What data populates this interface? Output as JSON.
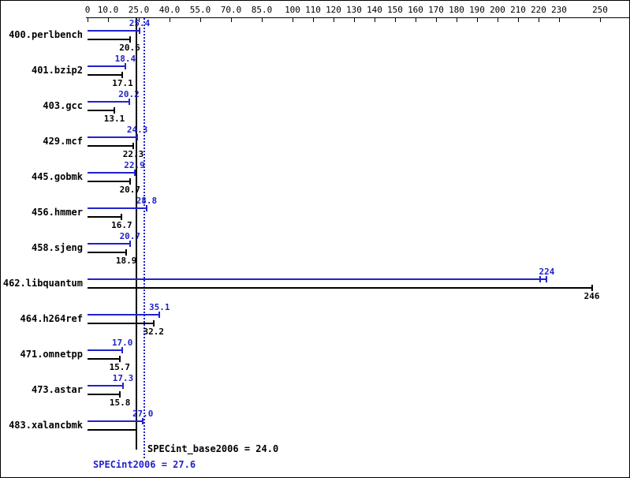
{
  "chart_data": {
    "type": "bar",
    "orientation": "horizontal",
    "legend": "none",
    "grid": false,
    "colors": {
      "peak": "#2222cc",
      "base": "#000000"
    },
    "axis": {
      "position": "top",
      "min": 0,
      "max": 250,
      "ticks": [
        "0",
        "10.0",
        "25.0",
        "40.0",
        "55.0",
        "70.0",
        "85.0",
        "100",
        "110",
        "120",
        "130",
        "140",
        "150",
        "160",
        "170",
        "180",
        "190",
        "200",
        "210",
        "220",
        "230",
        "250"
      ],
      "tick_values": [
        0,
        10,
        25,
        40,
        55,
        70,
        85,
        100,
        110,
        120,
        130,
        140,
        150,
        160,
        170,
        180,
        190,
        200,
        210,
        220,
        230,
        250
      ]
    },
    "series": [
      {
        "name": "peak",
        "label": "SPECint2006",
        "color": "#2222cc"
      },
      {
        "name": "base",
        "label": "SPECint_base2006",
        "color": "#000000"
      }
    ],
    "benchmarks": [
      {
        "name": "400.perlbench",
        "peak": 25.4,
        "peak_label": "25.4",
        "base": 20.6,
        "base_label": "20.6",
        "range_marker": false
      },
      {
        "name": "401.bzip2",
        "peak": 18.4,
        "peak_label": "18.4",
        "base": 17.1,
        "base_label": "17.1",
        "range_marker": false
      },
      {
        "name": "403.gcc",
        "peak": 20.2,
        "peak_label": "20.2",
        "base": 13.1,
        "base_label": "13.1",
        "range_marker": false
      },
      {
        "name": "429.mcf",
        "peak": 24.3,
        "peak_label": "24.3",
        "base": 22.3,
        "base_label": "22.3",
        "range_marker": false
      },
      {
        "name": "445.gobmk",
        "peak": 22.9,
        "peak_label": "22.9",
        "base": 20.7,
        "base_label": "20.7",
        "range_marker": false
      },
      {
        "name": "456.hmmer",
        "peak": 28.8,
        "peak_label": "28.8",
        "base": 16.7,
        "base_label": "16.7",
        "range_marker": false
      },
      {
        "name": "458.sjeng",
        "peak": 20.7,
        "peak_label": "20.7",
        "base": 18.9,
        "base_label": "18.9",
        "range_marker": false
      },
      {
        "name": "462.libquantum",
        "peak": 224,
        "peak_label": "224",
        "base": 246,
        "base_label": "246",
        "range_marker": true
      },
      {
        "name": "464.h264ref",
        "peak": 35.1,
        "peak_label": "35.1",
        "base": 32.2,
        "base_label": "32.2",
        "range_marker": false
      },
      {
        "name": "471.omnetpp",
        "peak": 17.0,
        "peak_label": "17.0",
        "base": 15.7,
        "base_label": "15.7",
        "range_marker": false
      },
      {
        "name": "473.astar",
        "peak": 17.3,
        "peak_label": "17.3",
        "base": 15.8,
        "base_label": "15.8",
        "range_marker": false
      },
      {
        "name": "483.xalancbmk",
        "peak": 27.0,
        "peak_label": "27.0",
        "base": 24.0,
        "base_label": "",
        "range_marker": false
      }
    ],
    "means": [
      {
        "name": "base",
        "value": 24.0,
        "label": "SPECint_base2006 = 24.0",
        "color": "#000000",
        "style": "solid"
      },
      {
        "name": "peak",
        "value": 27.6,
        "label": "SPECint2006 = 27.6",
        "color": "#2222cc",
        "style": "dotted"
      }
    ]
  }
}
